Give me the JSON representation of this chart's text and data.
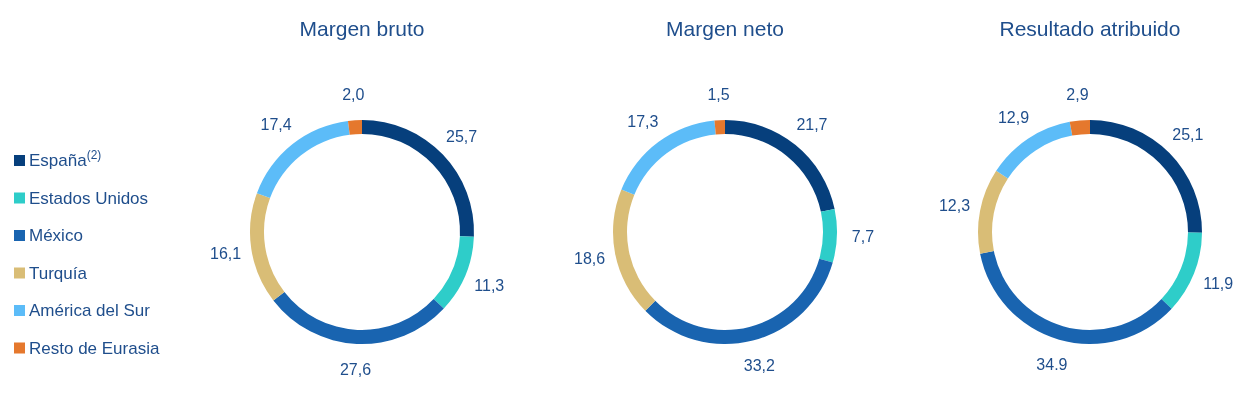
{
  "chart_data": [
    {
      "type": "donut",
      "title": "Margen bruto",
      "categories": [
        "España$^{(2)}$",
        "Estados Unidos",
        "México",
        "Turquía",
        "América del Sur",
        "Resto de Eurasia"
      ],
      "values": [
        25.7,
        11.3,
        27.6,
        16.1,
        17.4,
        2.0
      ],
      "value_labels": [
        "25,7",
        "11,3",
        "27,6",
        "16,1",
        "17,4",
        "2,0"
      ],
      "colors": [
        "#063f7c",
        "#2ecdc9",
        "#1964b0",
        "#d9bd76",
        "#5cbcf8",
        "#e5782d"
      ],
      "legend": "left"
    },
    {
      "type": "donut",
      "title": "Margen neto",
      "values": [
        21.7,
        7.7,
        33.2,
        18.6,
        17.3,
        1.5
      ],
      "value_labels": [
        "21,7",
        "7,7",
        "33,2",
        "18,6",
        "17,3",
        "1,5"
      ],
      "colors": [
        "#063f7c",
        "#2ecdc9",
        "#1964b0",
        "#d9bd76",
        "#5cbcf8",
        "#e5782d"
      ]
    },
    {
      "type": "donut",
      "title": "Resultado atribuido",
      "values": [
        25.1,
        11.9,
        34.9,
        12.3,
        12.9,
        2.9
      ],
      "value_labels": [
        "25,1",
        "11,9",
        "34.9",
        "12,3",
        "12,9",
        "2,9"
      ],
      "colors": [
        "#063f7c",
        "#2ecdc9",
        "#1964b0",
        "#d9bd76",
        "#5cbcf8",
        "#e5782d"
      ]
    }
  ]
}
